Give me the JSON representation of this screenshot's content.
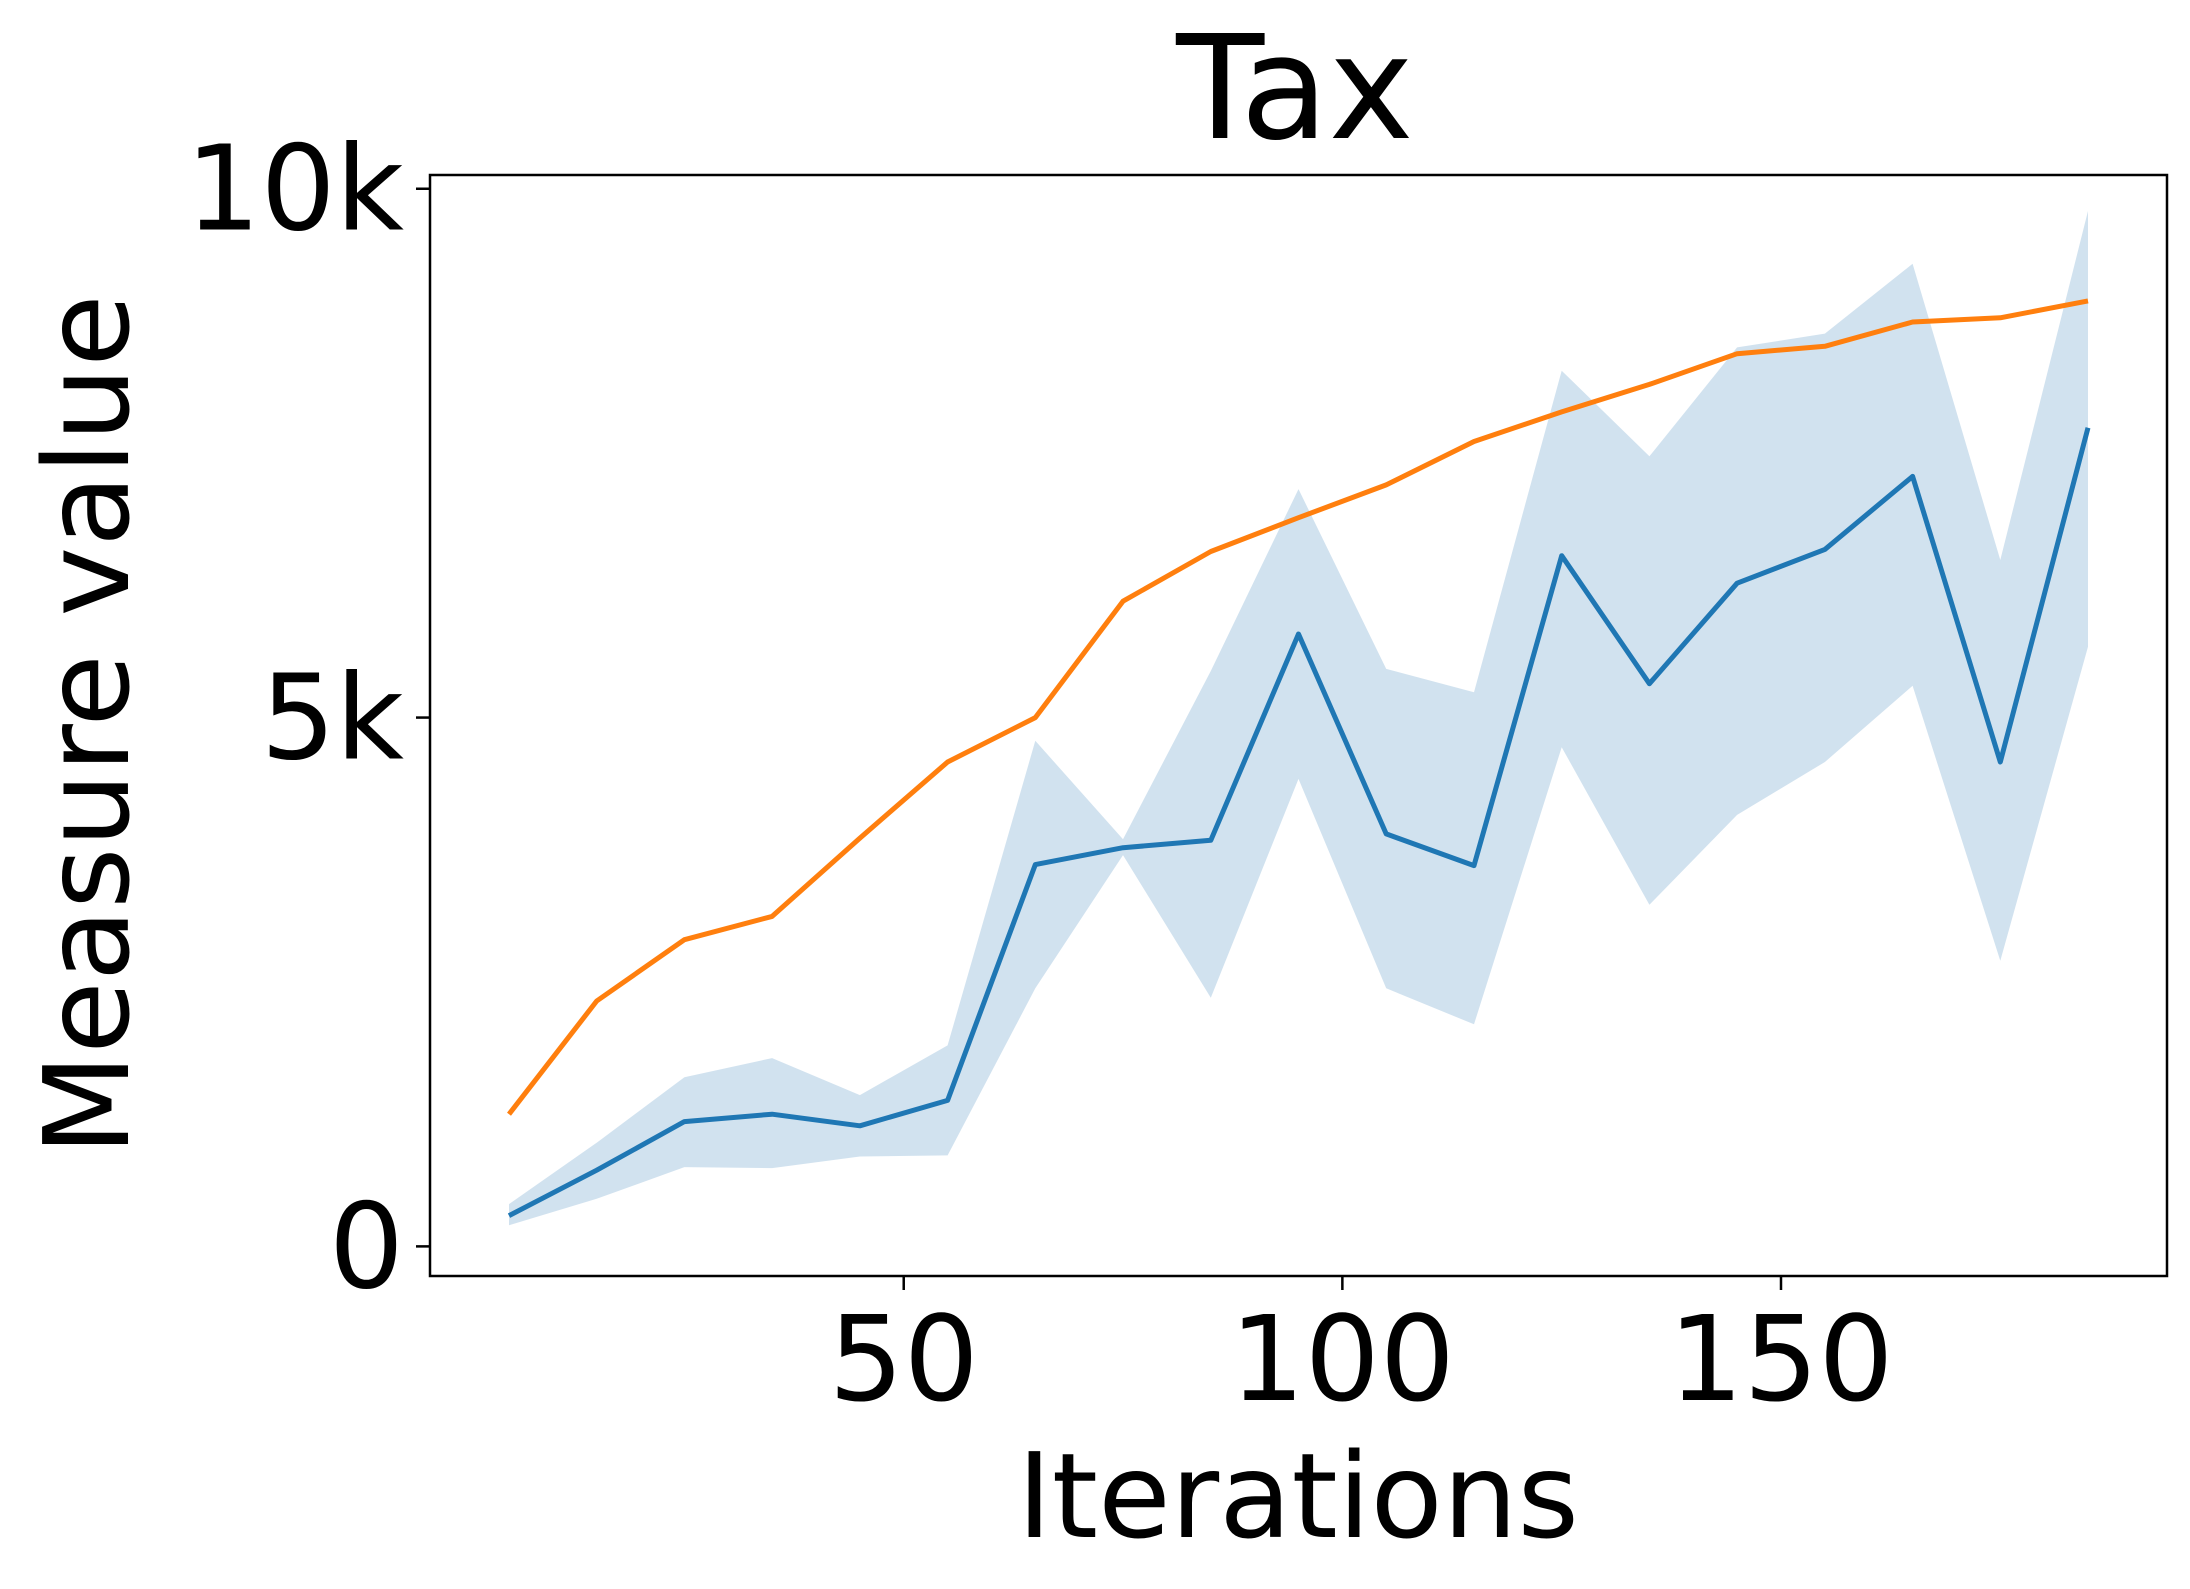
{
  "chart_data": {
    "type": "line",
    "title": "Tax",
    "xlabel": "Iterations",
    "ylabel": "Measure value",
    "x": [
      5,
      15,
      25,
      35,
      45,
      55,
      65,
      75,
      85,
      95,
      105,
      115,
      125,
      135,
      145,
      155,
      165,
      175,
      185
    ],
    "xlim": [
      -4,
      194
    ],
    "ylim": [
      -280,
      10130
    ],
    "xticks": [
      50,
      100,
      150
    ],
    "xtick_labels": [
      "50",
      "100",
      "150"
    ],
    "yticks": [
      0,
      5000,
      10000
    ],
    "ytick_labels": [
      "0",
      "5k",
      "10k"
    ],
    "grid": false,
    "legend": "none",
    "series": [
      {
        "color": "#ff7f0e",
        "values": [
          1250,
          2320,
          2900,
          3120,
          3860,
          4580,
          5000,
          6100,
          6570,
          6890,
          7200,
          7610,
          7890,
          8150,
          8440,
          8510,
          8740,
          8780,
          8940
        ]
      },
      {
        "color": "#1f77b4",
        "values": [
          290,
          720,
          1180,
          1250,
          1140,
          1380,
          3610,
          3770,
          3840,
          5790,
          3900,
          3600,
          6530,
          5320,
          6270,
          6590,
          7280,
          4580,
          7740
        ],
        "band_lower": [
          200,
          450,
          750,
          740,
          850,
          860,
          2440,
          3700,
          2350,
          4420,
          2440,
          2100,
          4720,
          3230,
          4080,
          4580,
          5300,
          2700,
          5670
        ],
        "band_upper": [
          400,
          980,
          1600,
          1780,
          1430,
          1900,
          4780,
          3850,
          5440,
          7160,
          5460,
          5240,
          8280,
          7470,
          8500,
          8630,
          9290,
          6490,
          9790
        ],
        "band_color": "#a3c6e0"
      }
    ]
  }
}
